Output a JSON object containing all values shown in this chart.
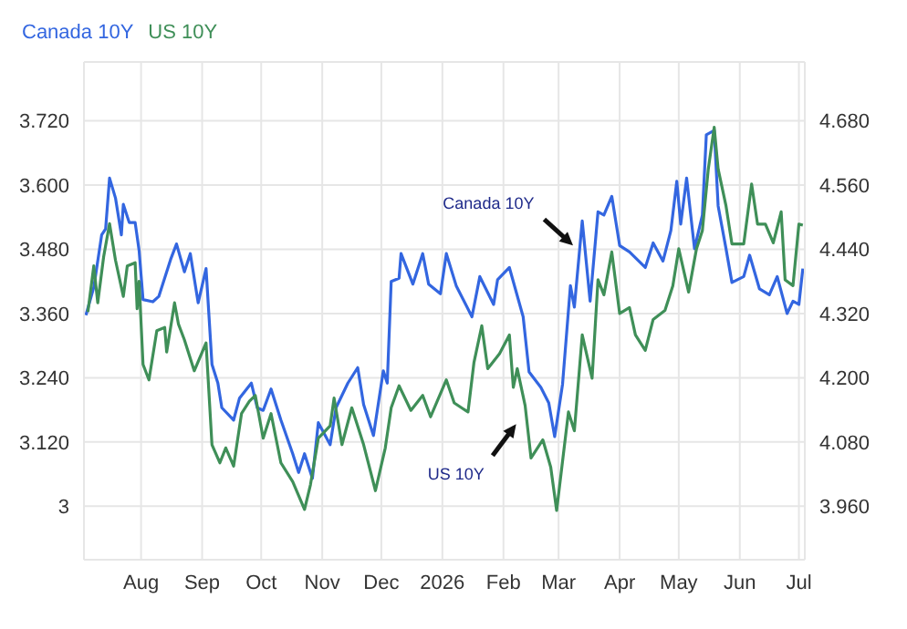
{
  "chart_data": {
    "type": "line",
    "xlim": [
      "2025-07-03",
      "2026-07-04"
    ],
    "xticks": [
      {
        "value": "2025-08-01",
        "label": "Aug"
      },
      {
        "value": "2025-09-01",
        "label": "Sep"
      },
      {
        "value": "2025-10-01",
        "label": "Oct"
      },
      {
        "value": "2025-11-01",
        "label": "Nov"
      },
      {
        "value": "2025-12-01",
        "label": "Dec"
      },
      {
        "value": "2026-01-01",
        "label": "2026"
      },
      {
        "value": "2026-02-01",
        "label": "Feb"
      },
      {
        "value": "2026-03-01",
        "label": "Mar"
      },
      {
        "value": "2026-04-01",
        "label": "Apr"
      },
      {
        "value": "2026-05-01",
        "label": "May"
      },
      {
        "value": "2026-06-01",
        "label": "Jun"
      },
      {
        "value": "2026-07-01",
        "label": "Jul"
      }
    ],
    "ylim": [
      2.9,
      3.83
    ],
    "yticks": [
      3,
      {
        "value": 3.12,
        "label": "3.120"
      },
      {
        "value": 3.24,
        "label": "3.240"
      },
      {
        "value": 3.36,
        "label": "3.360"
      },
      {
        "value": 3.48,
        "label": "3.480"
      },
      {
        "value": 3.6,
        "label": "3.600"
      },
      {
        "value": 3.72,
        "label": "3.720"
      }
    ],
    "y2lim": [
      3.86,
      4.79
    ],
    "y2ticks": [
      {
        "value": 3.96,
        "label": "3.960"
      },
      {
        "value": 4.08,
        "label": "4.080"
      },
      {
        "value": 4.2,
        "label": "4.200"
      },
      {
        "value": 4.32,
        "label": "4.320"
      },
      {
        "value": 4.44,
        "label": "4.440"
      },
      {
        "value": 4.56,
        "label": "4.560"
      },
      {
        "value": 4.68,
        "label": "4.680"
      }
    ],
    "grid": true,
    "legend": "top left",
    "marker": "none",
    "line_style": "solid",
    "annotations": [
      {
        "text": "Canada 10Y",
        "x": "2026-03-09",
        "y": 3.485
      },
      {
        "text": "US 10Y",
        "x": "2026-02-08",
        "y": 3.156
      }
    ],
    "series": [
      {
        "name": "Canada 10Y",
        "color": "#3366e0",
        "axis": "y",
        "x": [
          "2025-07-04",
          "2025-07-08",
          "2025-07-12",
          "2025-07-14",
          "2025-07-16",
          "2025-07-19",
          "2025-07-22",
          "2025-07-23",
          "2025-07-26",
          "2025-07-29",
          "2025-07-31",
          "2025-08-02",
          "2025-08-07",
          "2025-08-10",
          "2025-08-16",
          "2025-08-19",
          "2025-08-23",
          "2025-08-26",
          "2025-08-30",
          "2025-09-03",
          "2025-09-06",
          "2025-09-09",
          "2025-09-11",
          "2025-09-17",
          "2025-09-20",
          "2025-09-26",
          "2025-09-29",
          "2025-10-02",
          "2025-10-06",
          "2025-10-11",
          "2025-10-17",
          "2025-10-20",
          "2025-10-23",
          "2025-10-27",
          "2025-10-30",
          "2025-11-05",
          "2025-11-08",
          "2025-11-14",
          "2025-11-19",
          "2025-11-22",
          "2025-11-27",
          "2025-12-02",
          "2025-12-04",
          "2025-12-06",
          "2025-12-10",
          "2025-12-11",
          "2025-12-17",
          "2025-12-22",
          "2025-12-25",
          "2025-12-31",
          "2026-01-03",
          "2026-01-08",
          "2026-01-16",
          "2026-01-20",
          "2026-01-27",
          "2026-01-29",
          "2026-02-04",
          "2026-02-11",
          "2026-02-14",
          "2026-02-20",
          "2026-02-24",
          "2026-02-27",
          "2026-03-03",
          "2026-03-07",
          "2026-03-09",
          "2026-03-13",
          "2026-03-17",
          "2026-03-21",
          "2026-03-24",
          "2026-03-28",
          "2026-04-01",
          "2026-04-06",
          "2026-04-14",
          "2026-04-18",
          "2026-04-23",
          "2026-04-27",
          "2026-04-30",
          "2026-05-02",
          "2026-05-05",
          "2026-05-09",
          "2026-05-13",
          "2026-05-15",
          "2026-05-19",
          "2026-05-21",
          "2026-05-25",
          "2026-05-28",
          "2026-06-03",
          "2026-06-06",
          "2026-06-11",
          "2026-06-16",
          "2026-06-20",
          "2026-06-25",
          "2026-06-28",
          "2026-07-01",
          "2026-07-03"
        ],
        "values": [
          3.357,
          3.409,
          3.507,
          3.518,
          3.613,
          3.576,
          3.507,
          3.564,
          3.53,
          3.53,
          3.478,
          3.386,
          3.382,
          3.392,
          3.461,
          3.49,
          3.438,
          3.472,
          3.38,
          3.444,
          3.265,
          3.23,
          3.184,
          3.161,
          3.202,
          3.23,
          3.184,
          3.179,
          3.219,
          3.161,
          3.098,
          3.063,
          3.098,
          3.052,
          3.156,
          3.115,
          3.184,
          3.23,
          3.259,
          3.19,
          3.132,
          3.253,
          3.23,
          3.42,
          3.426,
          3.472,
          3.415,
          3.472,
          3.415,
          3.397,
          3.472,
          3.412,
          3.354,
          3.429,
          3.377,
          3.423,
          3.446,
          3.354,
          3.251,
          3.222,
          3.193,
          3.13,
          3.228,
          3.412,
          3.372,
          3.533,
          3.383,
          3.55,
          3.544,
          3.579,
          3.487,
          3.475,
          3.446,
          3.492,
          3.458,
          3.515,
          3.607,
          3.527,
          3.613,
          3.481,
          3.544,
          3.694,
          3.702,
          3.561,
          3.481,
          3.418,
          3.429,
          3.469,
          3.406,
          3.395,
          3.429,
          3.36,
          3.383,
          3.377,
          3.444
        ]
      },
      {
        "name": "US 10Y",
        "color": "#3f8f58",
        "axis": "y2",
        "x": [
          "2025-07-05",
          "2025-07-08",
          "2025-07-10",
          "2025-07-13",
          "2025-07-16",
          "2025-07-19",
          "2025-07-23",
          "2025-07-25",
          "2025-07-29",
          "2025-07-30",
          "2025-07-31",
          "2025-08-02",
          "2025-08-05",
          "2025-08-09",
          "2025-08-13",
          "2025-08-14",
          "2025-08-18",
          "2025-08-20",
          "2025-08-23",
          "2025-08-28",
          "2025-09-03",
          "2025-09-06",
          "2025-09-10",
          "2025-09-13",
          "2025-09-17",
          "2025-09-21",
          "2025-09-25",
          "2025-09-28",
          "2025-10-02",
          "2025-10-06",
          "2025-10-11",
          "2025-10-17",
          "2025-10-23",
          "2025-10-26",
          "2025-10-30",
          "2025-11-05",
          "2025-11-07",
          "2025-11-11",
          "2025-11-16",
          "2025-11-22",
          "2025-11-28",
          "2025-12-03",
          "2025-12-06",
          "2025-12-10",
          "2025-12-16",
          "2025-12-22",
          "2025-12-26",
          "2026-01-03",
          "2026-01-07",
          "2026-01-14",
          "2026-01-17",
          "2026-01-21",
          "2026-01-24",
          "2026-01-30",
          "2026-02-04",
          "2026-02-06",
          "2026-02-08",
          "2026-02-12",
          "2026-02-15",
          "2026-02-21",
          "2026-02-25",
          "2026-02-28",
          "2026-03-06",
          "2026-03-09",
          "2026-03-13",
          "2026-03-18",
          "2026-03-21",
          "2026-03-24",
          "2026-03-28",
          "2026-04-01",
          "2026-04-06",
          "2026-04-09",
          "2026-04-14",
          "2026-04-18",
          "2026-04-24",
          "2026-04-28",
          "2026-05-01",
          "2026-05-06",
          "2026-05-10",
          "2026-05-13",
          "2026-05-16",
          "2026-05-19",
          "2026-05-21",
          "2026-05-25",
          "2026-05-28",
          "2026-06-03",
          "2026-06-07",
          "2026-06-10",
          "2026-06-14",
          "2026-06-18",
          "2026-06-22",
          "2026-06-24",
          "2026-06-28",
          "2026-07-01",
          "2026-07-03"
        ],
        "values": [
          4.323,
          4.409,
          4.34,
          4.426,
          4.488,
          4.42,
          4.352,
          4.409,
          4.415,
          4.329,
          4.38,
          4.225,
          4.196,
          4.288,
          4.294,
          4.248,
          4.34,
          4.3,
          4.271,
          4.213,
          4.265,
          4.075,
          4.041,
          4.069,
          4.035,
          4.133,
          4.156,
          4.167,
          4.087,
          4.133,
          4.041,
          4.006,
          3.954,
          4.0,
          4.087,
          4.11,
          4.162,
          4.075,
          4.144,
          4.075,
          3.989,
          4.069,
          4.144,
          4.185,
          4.139,
          4.167,
          4.127,
          4.196,
          4.153,
          4.136,
          4.228,
          4.297,
          4.217,
          4.245,
          4.28,
          4.182,
          4.217,
          4.148,
          4.05,
          4.084,
          4.033,
          3.952,
          4.136,
          4.101,
          4.28,
          4.199,
          4.383,
          4.355,
          4.435,
          4.32,
          4.331,
          4.28,
          4.251,
          4.309,
          4.326,
          4.372,
          4.441,
          4.36,
          4.441,
          4.475,
          4.59,
          4.668,
          4.59,
          4.521,
          4.45,
          4.45,
          4.562,
          4.487,
          4.487,
          4.452,
          4.51,
          4.383,
          4.372,
          4.487,
          4.485
        ]
      }
    ]
  }
}
